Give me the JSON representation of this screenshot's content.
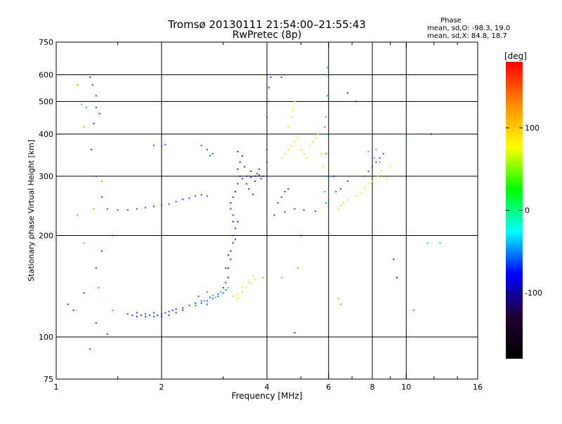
{
  "chart_data": {
    "type": "scatter",
    "title": "Tromsø 20130111 21:54:00–21:55:43",
    "subtitle": "RwPretec (8p)",
    "xlabel": "Frequency [MHz]",
    "ylabel": "Stationary phase Virtual Height [km]",
    "x_scale": "log",
    "y_scale": "log",
    "xlim": [
      1,
      16
    ],
    "ylim": [
      75,
      750
    ],
    "grid": true,
    "x_ticks": [
      1,
      2,
      4,
      6,
      8,
      10,
      16
    ],
    "x_minor_ticks": [
      1.5,
      3,
      5,
      7,
      9,
      12,
      14
    ],
    "y_ticks": [
      75,
      100,
      200,
      300,
      400,
      500,
      600,
      750
    ],
    "x_grid": [
      2,
      4,
      6,
      8,
      10
    ],
    "y_grid": [
      100,
      200,
      300,
      400,
      500,
      600
    ],
    "phase_box": {
      "title": "Phase",
      "line1": "mean, sd,O: -98.3, 19.0",
      "line2": "mean, sd,X:  84.8, 18.7"
    },
    "colorbar": {
      "label": "[deg]",
      "range": [
        -180,
        180
      ],
      "ticks": [
        100,
        0,
        -100
      ],
      "colors": [
        "#ff0000",
        "#ff8c00",
        "#ffff00",
        "#00ff00",
        "#00ffff",
        "#0000ff",
        "#200030",
        "#000000"
      ]
    },
    "series": [
      {
        "color": "#2040e0",
        "points": [
          [
            1.65,
            116
          ],
          [
            1.7,
            115
          ],
          [
            1.75,
            116
          ],
          [
            1.8,
            115
          ],
          [
            1.85,
            116
          ],
          [
            1.9,
            115
          ],
          [
            1.95,
            116
          ],
          [
            2.0,
            117
          ],
          [
            2.05,
            118
          ],
          [
            2.1,
            119
          ],
          [
            2.15,
            120
          ],
          [
            2.2,
            121
          ],
          [
            2.3,
            122
          ],
          [
            2.4,
            124
          ],
          [
            2.5,
            126
          ],
          [
            1.6,
            117
          ],
          [
            1.7,
            118
          ],
          [
            1.8,
            117
          ],
          [
            1.9,
            118
          ],
          [
            2.0,
            115
          ],
          [
            2.1,
            116
          ],
          [
            2.2,
            118
          ],
          [
            2.3,
            120
          ]
        ]
      },
      {
        "color": "#1a6ad8",
        "points": [
          [
            2.5,
            124
          ],
          [
            2.6,
            126
          ],
          [
            2.7,
            128
          ],
          [
            2.8,
            130
          ],
          [
            2.9,
            132
          ],
          [
            3.0,
            135
          ],
          [
            2.6,
            128
          ],
          [
            2.75,
            131
          ],
          [
            2.9,
            134
          ],
          [
            3.05,
            138
          ],
          [
            2.55,
            132
          ],
          [
            2.7,
            125
          ]
        ]
      },
      {
        "color": "#18b8e0",
        "points": [
          [
            2.65,
            128
          ],
          [
            2.8,
            133
          ],
          [
            2.95,
            136
          ],
          [
            3.1,
            140
          ],
          [
            2.7,
            136
          ],
          [
            2.85,
            131
          ]
        ]
      },
      {
        "color": "#3a20c8",
        "points": [
          [
            3.0,
            140
          ],
          [
            3.05,
            145
          ],
          [
            3.1,
            150
          ],
          [
            3.1,
            160
          ],
          [
            3.15,
            170
          ],
          [
            3.15,
            180
          ],
          [
            3.2,
            190
          ],
          [
            3.2,
            200
          ],
          [
            3.25,
            210
          ],
          [
            3.2,
            220
          ],
          [
            3.2,
            230
          ],
          [
            3.15,
            240
          ],
          [
            3.15,
            250
          ],
          [
            3.2,
            260
          ],
          [
            3.25,
            270
          ],
          [
            3.3,
            285
          ],
          [
            3.35,
            300
          ],
          [
            3.3,
            315
          ],
          [
            3.35,
            330
          ],
          [
            3.4,
            345
          ],
          [
            3.3,
            355
          ],
          [
            3.05,
            160
          ],
          [
            3.1,
            175
          ],
          [
            3.25,
            195
          ],
          [
            3.3,
            220
          ]
        ]
      },
      {
        "color": "#2a30d0",
        "points": [
          [
            3.4,
            295
          ],
          [
            3.5,
            300
          ],
          [
            3.6,
            298
          ],
          [
            3.7,
            300
          ],
          [
            3.8,
            302
          ],
          [
            3.9,
            300
          ],
          [
            3.5,
            285
          ],
          [
            3.6,
            310
          ],
          [
            3.7,
            290
          ],
          [
            3.8,
            315
          ],
          [
            3.45,
            320
          ],
          [
            3.55,
            275
          ],
          [
            3.65,
            265
          ],
          [
            3.75,
            305
          ],
          [
            3.85,
            295
          ]
        ]
      },
      {
        "color": "#e0f000",
        "points": [
          [
            3.2,
            132
          ],
          [
            3.3,
            134
          ],
          [
            3.4,
            136
          ],
          [
            3.5,
            140
          ],
          [
            3.6,
            144
          ],
          [
            3.7,
            148
          ],
          [
            3.4,
            141
          ],
          [
            3.55,
            146
          ],
          [
            3.65,
            152
          ],
          [
            3.3,
            130
          ]
        ]
      },
      {
        "color": "#2050e0",
        "points": [
          [
            1.4,
            240
          ],
          [
            1.5,
            238
          ],
          [
            1.6,
            238
          ],
          [
            1.7,
            240
          ],
          [
            1.8,
            242
          ],
          [
            1.9,
            244
          ],
          [
            2.0,
            246
          ],
          [
            2.1,
            248
          ],
          [
            2.2,
            252
          ],
          [
            2.3,
            256
          ],
          [
            2.4,
            258
          ],
          [
            2.5,
            262
          ],
          [
            2.6,
            264
          ],
          [
            2.7,
            262
          ]
        ]
      },
      {
        "color": "#2060e8",
        "points": [
          [
            2.6,
            370
          ],
          [
            2.7,
            360
          ],
          [
            2.75,
            345
          ],
          [
            2.8,
            350
          ],
          [
            1.9,
            370
          ],
          [
            2.0,
            368
          ],
          [
            2.05,
            372
          ]
        ]
      },
      {
        "color": "#e8f000",
        "points": [
          [
            4.4,
            340
          ],
          [
            4.5,
            350
          ],
          [
            4.6,
            360
          ],
          [
            4.7,
            370
          ],
          [
            4.8,
            380
          ],
          [
            4.9,
            390
          ],
          [
            5.0,
            360
          ],
          [
            5.1,
            350
          ],
          [
            5.2,
            340
          ],
          [
            5.3,
            370
          ],
          [
            5.4,
            380
          ],
          [
            5.5,
            390
          ],
          [
            4.6,
            420
          ],
          [
            4.7,
            450
          ],
          [
            4.75,
            470
          ],
          [
            4.8,
            500
          ],
          [
            5.6,
            400
          ],
          [
            5.7,
            350
          ],
          [
            5.8,
            320
          ]
        ]
      },
      {
        "color": "#2a40d8",
        "points": [
          [
            4.0,
            330
          ],
          [
            4.0,
            360
          ],
          [
            4.0,
            400
          ],
          [
            4.0,
            450
          ],
          [
            4.05,
            500
          ],
          [
            4.05,
            550
          ],
          [
            4.1,
            590
          ],
          [
            4.3,
            250
          ],
          [
            4.4,
            260
          ],
          [
            4.5,
            270
          ],
          [
            4.6,
            275
          ],
          [
            4.2,
            230
          ],
          [
            4.5,
            235
          ],
          [
            4.8,
            240
          ],
          [
            5.1,
            238
          ],
          [
            5.5,
            236
          ],
          [
            4.4,
            590
          ],
          [
            4.5,
            600
          ]
        ]
      },
      {
        "color": "#20a8e8",
        "points": [
          [
            5.9,
            250
          ],
          [
            5.9,
            300
          ],
          [
            5.9,
            350
          ],
          [
            5.9,
            400
          ],
          [
            5.9,
            450
          ],
          [
            5.95,
            520
          ],
          [
            5.95,
            600
          ],
          [
            5.95,
            630
          ],
          [
            5.85,
            270
          ],
          [
            5.85,
            420
          ]
        ]
      },
      {
        "color": "#e0f000",
        "points": [
          [
            6.4,
            240
          ],
          [
            6.5,
            245
          ],
          [
            6.6,
            250
          ],
          [
            6.8,
            255
          ],
          [
            7.2,
            262
          ],
          [
            7.4,
            268
          ],
          [
            7.6,
            275
          ],
          [
            7.8,
            285
          ],
          [
            8.0,
            290
          ],
          [
            8.3,
            300
          ],
          [
            8.5,
            310
          ],
          [
            8.8,
            295
          ],
          [
            9.0,
            320
          ]
        ]
      },
      {
        "color": "#3050d8",
        "points": [
          [
            6.3,
            270
          ],
          [
            6.5,
            275
          ],
          [
            6.8,
            290
          ],
          [
            7.6,
            300
          ],
          [
            7.8,
            310
          ],
          [
            8.0,
            320
          ],
          [
            8.2,
            330
          ],
          [
            8.4,
            340
          ],
          [
            8.6,
            350
          ]
        ]
      },
      {
        "color": "#d070e0",
        "points": [
          [
            8.1,
            340
          ],
          [
            8.2,
            360
          ],
          [
            8.4,
            330
          ],
          [
            7.8,
            355
          ]
        ]
      },
      {
        "color": "#2040e0",
        "points": [
          [
            1.25,
            590
          ],
          [
            1.27,
            560
          ],
          [
            1.3,
            520
          ],
          [
            1.3,
            480
          ],
          [
            1.33,
            460
          ],
          [
            1.28,
            430
          ],
          [
            1.26,
            360
          ],
          [
            1.3,
            300
          ],
          [
            1.35,
            260
          ],
          [
            1.08,
            125
          ],
          [
            1.12,
            120
          ],
          [
            1.2,
            135
          ],
          [
            1.3,
            110
          ],
          [
            1.4,
            102
          ],
          [
            1.25,
            92
          ],
          [
            1.3,
            160
          ],
          [
            1.35,
            180
          ],
          [
            1.45,
            200
          ]
        ]
      },
      {
        "color": "#f0a000",
        "points": [
          [
            1.15,
            560
          ],
          [
            1.2,
            420
          ],
          [
            1.35,
            290
          ],
          [
            1.28,
            240
          ],
          [
            6.4,
            130
          ],
          [
            6.5,
            125
          ],
          [
            4.9,
            160
          ],
          [
            3.9,
            150
          ]
        ]
      },
      {
        "color": "#40e040",
        "points": [
          [
            1.18,
            490
          ],
          [
            1.15,
            230
          ],
          [
            1.2,
            190
          ],
          [
            1.32,
            140
          ],
          [
            4.4,
            150
          ]
        ]
      },
      {
        "color": "#18b8e8",
        "points": [
          [
            1.22,
            480
          ],
          [
            1.45,
            120
          ],
          [
            9.9,
            400
          ],
          [
            11.5,
            190
          ],
          [
            12.5,
            190
          ],
          [
            10.5,
            120
          ]
        ]
      },
      {
        "color": "#3020c0",
        "points": [
          [
            9.2,
            170
          ],
          [
            9.4,
            150
          ],
          [
            11.8,
            400
          ],
          [
            7.2,
            500
          ],
          [
            6.2,
            300
          ],
          [
            5.0,
            200
          ],
          [
            4.8,
            103
          ],
          [
            6.8,
            530
          ]
        ]
      }
    ]
  }
}
